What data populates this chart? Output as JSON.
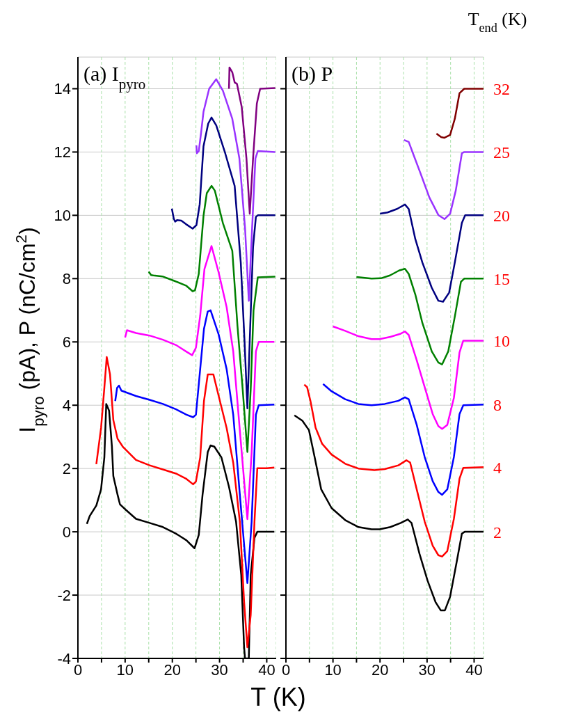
{
  "chart_data": [
    {
      "type": "line",
      "annotations": [
        "(a) I$_{pyro}$"
      ],
      "ylabel": "I$_{pyro}$ (pA),    P (nC/cm$^{2}$)",
      "xlabel": "T (K)",
      "xlim": [
        0,
        42
      ],
      "xticks": [
        0,
        {
          "value": 5,
          "label": null
        },
        10,
        {
          "value": 15,
          "label": null
        },
        20,
        {
          "value": 25,
          "label": null
        },
        30,
        {
          "value": 35,
          "label": null
        },
        40
      ],
      "ylim": [
        -4,
        15
      ],
      "yticks": [
        -4,
        -2,
        0,
        2,
        4,
        6,
        8,
        10,
        12,
        14
      ],
      "grid": true,
      "series": [
        {
          "color": "#000000",
          "x": [
            1.9,
            2.5,
            3.9,
            4.9,
            5.6,
            6.0,
            6.6,
            7.2,
            7.5,
            8.4,
            8.9,
            10.1,
            12.3,
            15.2,
            18,
            20.8,
            23,
            24.7,
            25.6,
            26.4,
            27.5,
            28.1,
            28.9,
            30.4,
            32,
            33.5,
            34.6,
            35.2,
            35.4,
            36.2,
            36.6,
            37.4,
            38,
            40,
            41.6
          ],
          "values": [
            0.25,
            0.5,
            0.83,
            1.34,
            2.35,
            4.04,
            3.83,
            2.7,
            1.76,
            1.17,
            0.87,
            0.7,
            0.41,
            0.28,
            0.15,
            -0.06,
            -0.27,
            -0.52,
            -0.1,
            1.17,
            2.52,
            2.73,
            2.69,
            2.35,
            1.42,
            0.32,
            -1.37,
            -3.65,
            -4,
            -4,
            -1.37,
            -0.19,
            0,
            0,
            0
          ]
        },
        {
          "color": "#ff0000",
          "x": [
            3.9,
            4.9,
            5.6,
            6.1,
            6.8,
            7.5,
            8.4,
            9.5,
            12.3,
            15.2,
            18,
            20.8,
            23,
            24.4,
            25,
            25.9,
            26.7,
            27.5,
            28.7,
            29.8,
            31.5,
            32.9,
            34.3,
            35.2,
            35.9,
            36.6,
            37.4,
            38,
            40,
            41.6
          ],
          "values": [
            2.14,
            3.28,
            4.55,
            5.52,
            4.97,
            3.53,
            2.94,
            2.69,
            2.27,
            2.1,
            1.97,
            1.84,
            1.67,
            1.5,
            1.59,
            2.35,
            4.13,
            4.97,
            4.97,
            4.3,
            3.28,
            2.18,
            0.32,
            -2.21,
            -3.65,
            -2.63,
            0.32,
            2.01,
            2.01,
            2.03
          ]
        },
        {
          "color": "#0000ff",
          "x": [
            7.9,
            8.3,
            8.7,
            9.2,
            12.3,
            15.2,
            18,
            20.8,
            23,
            24.4,
            25,
            25.9,
            26.7,
            27.5,
            28.1,
            29.8,
            31.5,
            32.9,
            34.3,
            35.9,
            36.8,
            37.7,
            38.3,
            41.6
          ],
          "values": [
            4.13,
            4.55,
            4.62,
            4.46,
            4.29,
            4.17,
            4.04,
            3.87,
            3.7,
            3.62,
            3.7,
            5.14,
            6.41,
            6.96,
            7.0,
            6.24,
            5.14,
            3.7,
            1.17,
            -1.62,
            0.32,
            3.7,
            4.0,
            4.02
          ]
        },
        {
          "color": "#ff00ff",
          "x": [
            10,
            10.4,
            12.3,
            15.2,
            18,
            20.8,
            23,
            24.2,
            25,
            25.9,
            26.8,
            28.3,
            29.8,
            31.5,
            32.9,
            34.3,
            35.9,
            36.8,
            37.7,
            38.3,
            41.6
          ],
          "values": [
            6.14,
            6.37,
            6.28,
            6.2,
            6.07,
            5.9,
            5.69,
            5.58,
            5.82,
            6.83,
            8.3,
            9.03,
            8.2,
            7.1,
            5.7,
            3.2,
            0.4,
            2.5,
            5.7,
            6.0,
            6.0
          ]
        },
        {
          "color": "#008000",
          "x": [
            15,
            15.5,
            16,
            17.9,
            20.4,
            22.9,
            24.3,
            24.8,
            25.6,
            26.6,
            27.3,
            28.3,
            29,
            30.7,
            32.7,
            33.8,
            34.9,
            35.9,
            36.6,
            37.2,
            38.1,
            41.8
          ],
          "values": [
            8.22,
            8.11,
            8.1,
            8.07,
            7.93,
            7.78,
            7.6,
            7.63,
            8.15,
            9.98,
            10.7,
            10.93,
            10.78,
            9.76,
            8.88,
            6.5,
            4.5,
            2.52,
            4.5,
            7.0,
            8.04,
            8.06
          ]
        },
        {
          "color": "#000080",
          "x": [
            19.9,
            20.3,
            20.6,
            21,
            21.9,
            22.9,
            24.3,
            25.1,
            25.8,
            26.6,
            27.6,
            28.3,
            29.3,
            31.2,
            33.2,
            34.5,
            35.3,
            35.9,
            36.5,
            37.1,
            37.7,
            38.1,
            41.8
          ],
          "values": [
            10.21,
            9.9,
            9.8,
            9.85,
            9.83,
            9.72,
            9.58,
            9.69,
            10.35,
            12.18,
            12.9,
            13.09,
            12.84,
            11.96,
            10.93,
            8.5,
            6,
            3.9,
            6.5,
            9.0,
            9.95,
            10.0,
            10.0
          ]
        },
        {
          "color": "#9933ff",
          "x": [
            25.1,
            25.2,
            25.6,
            26.1,
            26.6,
            27.8,
            29.3,
            30.7,
            32.7,
            34.2,
            35.4,
            36.2,
            36.9,
            37.6,
            38.1,
            41.8
          ],
          "values": [
            12.21,
            11.96,
            12.03,
            12.62,
            13.27,
            14.0,
            14.3,
            13.94,
            13.05,
            11.8,
            9.6,
            7.3,
            9.6,
            11.8,
            12.03,
            12.0
          ]
        },
        {
          "color": "#800080",
          "x": [
            32,
            32.1,
            32.7,
            33.2,
            33.7,
            34.7,
            35.7,
            36.4,
            37.1,
            37.9,
            38.6,
            41.8
          ],
          "values": [
            14.0,
            14.67,
            14.52,
            14.2,
            14.15,
            13.42,
            11.8,
            10.05,
            11.8,
            13.53,
            14.0,
            14.02
          ]
        }
      ]
    },
    {
      "type": "line",
      "annotations": [
        "(b) P"
      ],
      "legend_title": "T$_{end}$ (K)",
      "tick_labels": "x",
      "xlim": [
        0,
        42
      ],
      "xticks": [
        0,
        {
          "value": 5,
          "label": null
        },
        10,
        {
          "value": 15,
          "label": null
        },
        20,
        {
          "value": 25,
          "label": null
        },
        30,
        {
          "value": 35,
          "label": null
        },
        40
      ],
      "ylim": [
        -4,
        15
      ],
      "yticks": [
        {
          "value": -4,
          "label": null
        },
        {
          "value": -2,
          "label": null
        },
        {
          "value": 0,
          "label": null
        },
        {
          "value": 2,
          "label": null
        },
        {
          "value": 4,
          "label": null
        },
        {
          "value": 6,
          "label": null
        },
        {
          "value": 8,
          "label": null
        },
        {
          "value": 10,
          "label": null
        },
        {
          "value": 12,
          "label": null
        },
        {
          "value": 14,
          "label": null
        }
      ],
      "grid": true,
      "series": [
        {
          "name": "2",
          "color": "#000000",
          "x": [
            1.8,
            3.5,
            4.9,
            6.1,
            7.5,
            9.7,
            12.6,
            15.4,
            18.2,
            19.9,
            22.2,
            24.4,
            25.9,
            26.7,
            28.4,
            30.1,
            31.8,
            32.9,
            33.8,
            34.9,
            36.3,
            37.4,
            38,
            42
          ],
          "values": [
            3.68,
            3.51,
            3.21,
            2.36,
            1.34,
            0.75,
            0.37,
            0.15,
            0.08,
            0.08,
            0.15,
            0.28,
            0.39,
            0.28,
            -0.7,
            -1.54,
            -2.22,
            -2.48,
            -2.48,
            -2.05,
            -0.95,
            -0.06,
            0,
            0
          ]
        },
        {
          "name": "4",
          "color": "#ff0000",
          "x": [
            3.9,
            4.5,
            5.2,
            6.3,
            7.7,
            9.7,
            12.6,
            15.4,
            18.8,
            21,
            23.9,
            25.6,
            26.4,
            27.8,
            29.5,
            31.2,
            32.4,
            33.2,
            34.3,
            35.7,
            36.9,
            37.7,
            42
          ],
          "values": [
            4.65,
            4.57,
            4.14,
            3.29,
            2.78,
            2.44,
            2.15,
            2.0,
            1.95,
            1.98,
            2.1,
            2.26,
            2.19,
            1.34,
            0.32,
            -0.44,
            -0.74,
            -0.78,
            -0.61,
            0.41,
            1.68,
            2.02,
            2.04
          ]
        },
        {
          "name": "8",
          "color": "#0000ff",
          "x": [
            7.9,
            9.7,
            12.6,
            15.4,
            18.2,
            21,
            23.9,
            25.3,
            26.1,
            27.8,
            29.5,
            31.2,
            32.4,
            33.2,
            34.3,
            35.7,
            36.9,
            37.7,
            42
          ],
          "values": [
            4.67,
            4.44,
            4.19,
            4.04,
            4.0,
            4.04,
            4.14,
            4.25,
            4.19,
            3.38,
            2.36,
            1.6,
            1.26,
            1.17,
            1.34,
            2.36,
            3.72,
            4.0,
            4.02
          ]
        },
        {
          "name": "10",
          "color": "#ff00ff",
          "x": [
            10,
            12.6,
            15.4,
            18.2,
            19.9,
            22.2,
            24.4,
            25.3,
            26.1,
            27.8,
            29.5,
            31.2,
            32.4,
            33.2,
            34.3,
            35.7,
            36.9,
            37.7,
            42
          ],
          "values": [
            6.49,
            6.35,
            6.18,
            6.09,
            6.09,
            6.16,
            6.26,
            6.33,
            6.22,
            5.42,
            4.57,
            3.72,
            3.34,
            3.25,
            3.38,
            4.23,
            5.67,
            6.04,
            6.04
          ]
        },
        {
          "name": "15",
          "color": "#008000",
          "x": [
            15,
            18.2,
            20.2,
            22.1,
            24.1,
            25.3,
            26.1,
            27.5,
            29,
            31,
            32.4,
            33.2,
            34.5,
            35.9,
            37.2,
            37.9,
            42
          ],
          "values": [
            8.05,
            8.0,
            8.01,
            8.1,
            8.26,
            8.31,
            8.15,
            7.5,
            6.6,
            5.7,
            5.35,
            5.29,
            5.7,
            6.8,
            7.9,
            8.0,
            8.0
          ]
        },
        {
          "name": "20",
          "color": "#000080",
          "x": [
            20,
            21.6,
            23.6,
            25.3,
            26.1,
            27.5,
            29,
            31,
            32.4,
            33.4,
            34.7,
            35.9,
            37.4,
            38.1,
            42
          ],
          "values": [
            10.05,
            10.09,
            10.2,
            10.34,
            10.2,
            9.25,
            8.51,
            7.71,
            7.3,
            7.27,
            7.56,
            8.51,
            9.76,
            10.0,
            10.0
          ]
        },
        {
          "name": "25",
          "color": "#9933ff",
          "x": [
            25.1,
            26.1,
            27,
            28.5,
            30.5,
            32.4,
            33.7,
            34.9,
            36.1,
            37.4,
            37.9,
            42
          ],
          "values": [
            12.38,
            12.32,
            11.96,
            11.37,
            10.56,
            10.01,
            9.88,
            10.05,
            10.78,
            11.96,
            12.0,
            12.0
          ]
        },
        {
          "name": "32",
          "color": "#800000",
          "x": [
            32,
            33,
            33.7,
            34.9,
            35.9,
            36.9,
            37.9,
            42
          ],
          "values": [
            12.58,
            12.47,
            12.45,
            12.54,
            13.05,
            13.86,
            14.0,
            14.0
          ]
        }
      ]
    }
  ]
}
